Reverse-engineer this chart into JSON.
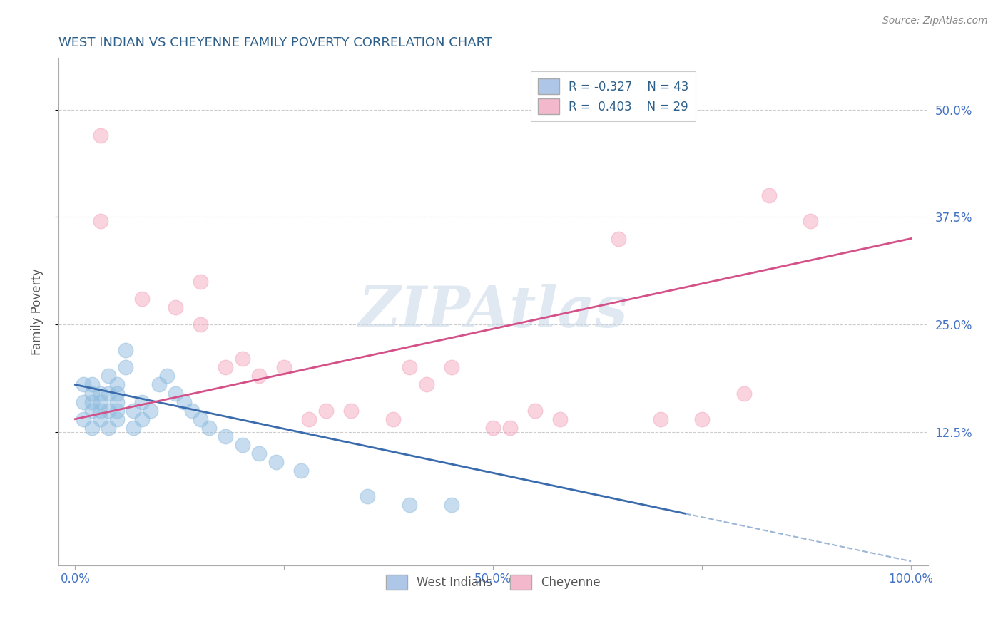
{
  "title": "WEST INDIAN VS CHEYENNE FAMILY POVERTY CORRELATION CHART",
  "source": "Source: ZipAtlas.com",
  "ylabel": "Family Poverty",
  "xlim": [
    -2,
    102
  ],
  "ylim": [
    -3,
    56
  ],
  "ytick_vals": [
    12.5,
    25.0,
    37.5,
    50.0
  ],
  "ytick_labels": [
    "12.5%",
    "25.0%",
    "37.5%",
    "50.0%"
  ],
  "xtick_vals": [
    0,
    25,
    50,
    75,
    100
  ],
  "xtick_labels": [
    "0.0%",
    "",
    "50.0%",
    "",
    "100.0%"
  ],
  "background_color": "#ffffff",
  "watermark_text": "ZIPAtlas",
  "watermark_color": "#c8d8e8",
  "blue_scatter_color": "#90bde0",
  "pink_scatter_color": "#f4a8be",
  "blue_line_color": "#3a6bad",
  "pink_line_color": "#d45088",
  "title_color": "#2c5f8a",
  "tick_color": "#4472c4",
  "source_color": "#888888",
  "ylabel_color": "#555555",
  "grid_color": "#cccccc",
  "legend_box_blue": "#aec6e8",
  "legend_box_pink": "#f4b8cc",
  "legend_text_color": "#2c5f8a",
  "wi_x": [
    1,
    1,
    1,
    2,
    2,
    2,
    2,
    2,
    3,
    3,
    3,
    3,
    4,
    4,
    4,
    4,
    5,
    5,
    5,
    5,
    5,
    6,
    6,
    7,
    7,
    8,
    8,
    9,
    10,
    11,
    12,
    13,
    14,
    15,
    16,
    18,
    20,
    22,
    24,
    27,
    35,
    40,
    45
  ],
  "wi_y": [
    14,
    16,
    18,
    13,
    15,
    16,
    17,
    18,
    14,
    15,
    16,
    17,
    13,
    15,
    17,
    19,
    14,
    15,
    16,
    17,
    18,
    20,
    22,
    13,
    15,
    16,
    14,
    15,
    18,
    19,
    17,
    16,
    15,
    14,
    13,
    12,
    11,
    10,
    9,
    8,
    5,
    4,
    4
  ],
  "ch_x": [
    3,
    3,
    8,
    12,
    15,
    15,
    18,
    20,
    22,
    25,
    28,
    30,
    33,
    38,
    40,
    42,
    45,
    50,
    52,
    55,
    58,
    65,
    70,
    75,
    80,
    83,
    88
  ],
  "ch_y": [
    47,
    37,
    28,
    27,
    25,
    30,
    20,
    21,
    19,
    20,
    14,
    15,
    15,
    14,
    20,
    18,
    20,
    13,
    13,
    15,
    14,
    35,
    14,
    14,
    17,
    40,
    37
  ],
  "wi_line_x0": 0,
  "wi_line_x1": 73,
  "wi_line_y0": 18.0,
  "wi_line_y1": 3.0,
  "ch_line_x0": 0,
  "ch_line_x1": 100,
  "ch_line_y0": 14.0,
  "ch_line_y1": 35.0
}
